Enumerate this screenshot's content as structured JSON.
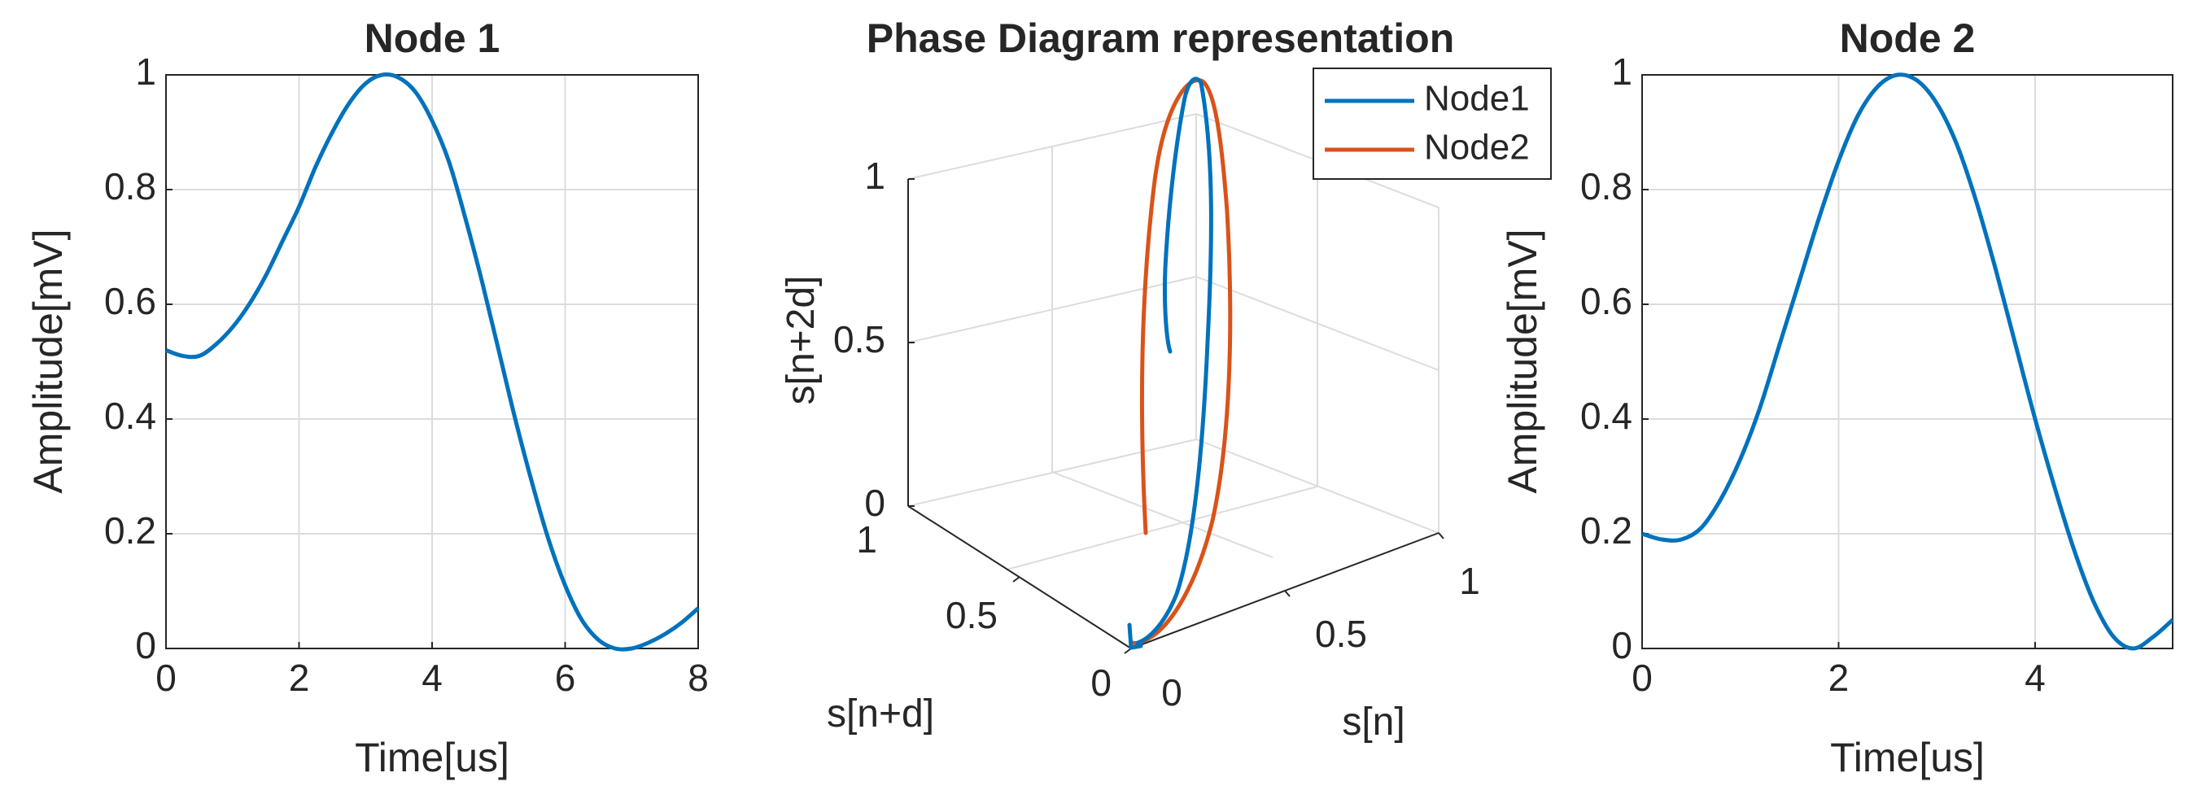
{
  "colors": {
    "node1": "#0072BD",
    "node2": "#D95319",
    "axis": "#262626",
    "grid": "#dcdcdc"
  },
  "chart_data": [
    {
      "type": "line",
      "title": "Node 1",
      "xlabel": "Time[us]",
      "ylabel": "Amplitude[mV]",
      "xlim": [
        0,
        8
      ],
      "ylim": [
        0,
        1
      ],
      "xticks": [
        "0",
        "2",
        "4",
        "6",
        "8"
      ],
      "yticks": [
        "0",
        "0.2",
        "0.4",
        "0.6",
        "0.8",
        "1"
      ],
      "grid": true,
      "series": [
        {
          "name": "Node 1",
          "x": [
            0,
            0.25,
            0.5,
            0.75,
            1.0,
            1.25,
            1.5,
            1.75,
            2.0,
            2.25,
            2.5,
            2.75,
            3.0,
            3.25,
            3.5,
            3.75,
            4.0,
            4.25,
            4.5,
            4.75,
            5.0,
            5.25,
            5.5,
            5.75,
            6.0,
            6.25,
            6.5,
            6.75,
            7.0,
            7.25,
            7.5,
            7.75,
            8.0
          ],
          "y": [
            0.52,
            0.51,
            0.51,
            0.53,
            0.56,
            0.6,
            0.65,
            0.71,
            0.77,
            0.84,
            0.9,
            0.95,
            0.985,
            1.0,
            0.995,
            0.97,
            0.92,
            0.85,
            0.75,
            0.64,
            0.52,
            0.4,
            0.29,
            0.19,
            0.11,
            0.05,
            0.015,
            0.0,
            0.0,
            0.01,
            0.025,
            0.045,
            0.07
          ]
        }
      ]
    },
    {
      "type": "line3d",
      "title": "Phase Diagram representation",
      "xlabel": "s[n]",
      "ylabel": "s[n+d]",
      "zlabel": "s[n+2d]",
      "xticks": [
        "0",
        "0.5",
        "1"
      ],
      "yticks": [
        "0",
        "0.5",
        "1"
      ],
      "zticks": [
        "0",
        "0.5",
        "1"
      ],
      "xlim": [
        0,
        1
      ],
      "ylim": [
        0,
        1
      ],
      "zlim": [
        0,
        1
      ],
      "grid": true,
      "legend": {
        "position": "top-right",
        "entries": [
          "Node1",
          "Node2"
        ]
      },
      "series": [
        {
          "name": "Node1",
          "x": [
            0.0,
            0.05,
            0.12,
            0.2,
            0.3,
            0.45,
            0.6,
            0.72,
            0.8,
            0.82,
            0.78,
            0.68,
            0.55,
            0.48
          ],
          "y": [
            0.0,
            0.0,
            0.05,
            0.12,
            0.25,
            0.42,
            0.6,
            0.75,
            0.88,
            0.96,
            0.98,
            0.95,
            0.88,
            0.82
          ],
          "z": [
            0.0,
            0.0,
            0.02,
            0.08,
            0.2,
            0.38,
            0.56,
            0.72,
            0.85,
            0.95,
            1.0,
            0.95,
            0.85,
            0.7
          ]
        },
        {
          "name": "Node2",
          "x": [
            0.02,
            0.08,
            0.18,
            0.32,
            0.5,
            0.66,
            0.78,
            0.84,
            0.82,
            0.72,
            0.58,
            0.42,
            0.3,
            0.22
          ],
          "y": [
            0.02,
            0.02,
            0.06,
            0.15,
            0.3,
            0.5,
            0.7,
            0.85,
            0.95,
            0.98,
            0.92,
            0.78,
            0.6,
            0.42
          ],
          "z": [
            0.0,
            0.01,
            0.04,
            0.12,
            0.28,
            0.48,
            0.68,
            0.84,
            0.96,
            1.0,
            0.92,
            0.75,
            0.55,
            0.38
          ]
        }
      ]
    },
    {
      "type": "line",
      "title": "Node 2",
      "xlabel": "Time[us]",
      "ylabel": "Amplitude[mV]",
      "xlim": [
        0,
        5.4
      ],
      "ylim": [
        0,
        1
      ],
      "xticks": [
        "0",
        "2",
        "4"
      ],
      "yticks": [
        "0",
        "0.2",
        "0.4",
        "0.6",
        "0.8",
        "1"
      ],
      "grid": true,
      "series": [
        {
          "name": "Node 2",
          "x": [
            0,
            0.2,
            0.4,
            0.6,
            0.8,
            1.0,
            1.2,
            1.4,
            1.6,
            1.8,
            2.0,
            2.2,
            2.4,
            2.6,
            2.8,
            3.0,
            3.2,
            3.4,
            3.6,
            3.8,
            4.0,
            4.2,
            4.4,
            4.6,
            4.8,
            5.0,
            5.2,
            5.4
          ],
          "y": [
            0.2,
            0.19,
            0.19,
            0.21,
            0.26,
            0.33,
            0.42,
            0.53,
            0.64,
            0.75,
            0.85,
            0.93,
            0.98,
            1.0,
            0.99,
            0.95,
            0.88,
            0.78,
            0.66,
            0.53,
            0.4,
            0.28,
            0.17,
            0.08,
            0.02,
            0.0,
            0.02,
            0.05
          ]
        }
      ]
    }
  ]
}
